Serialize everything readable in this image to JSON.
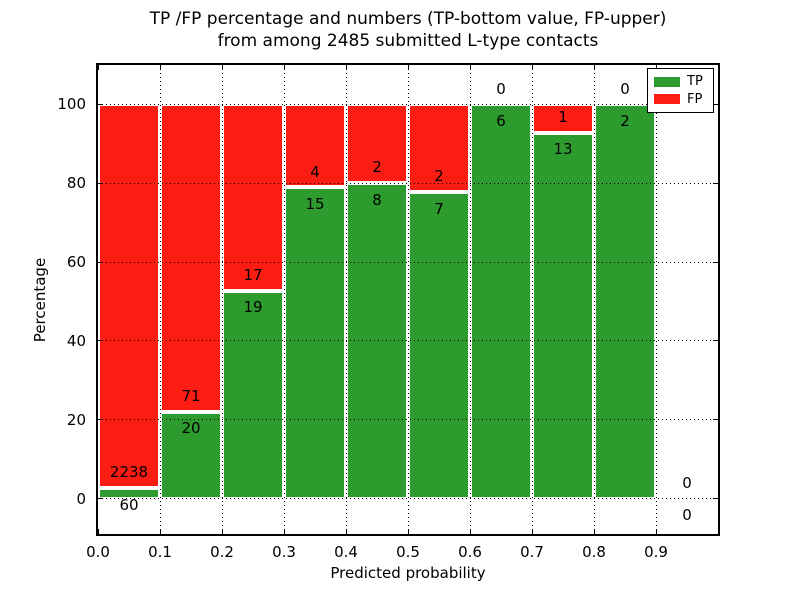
{
  "title_line1": "TP /FP percentage and numbers (TP-bottom value, FP-upper)",
  "title_line2": "from among 2485 submitted L-type contacts",
  "colors": {
    "tp": "#2e9b2e",
    "fp": "#fb1d14",
    "grid": "#000000",
    "frame": "#000000",
    "background": "#ffffff"
  },
  "chart_data": {
    "type": "bar",
    "stacked": true,
    "title": "TP /FP percentage and numbers (TP-bottom value, FP-upper) from among 2485 submitted L-type contacts",
    "xlabel": "Predicted probability",
    "ylabel": "Percentage",
    "total_contacts": 2485,
    "x_ticks": [
      0.0,
      0.1,
      0.2,
      0.3,
      0.4,
      0.5,
      0.6,
      0.7,
      0.8,
      0.9
    ],
    "x_tick_labels": [
      "0.0",
      "0.1",
      "0.2",
      "0.3",
      "0.4",
      "0.5",
      "0.6",
      "0.7",
      "0.8",
      "0.9"
    ],
    "y_ticks": [
      0,
      20,
      40,
      60,
      80,
      100
    ],
    "y_tick_labels": [
      "0",
      "20",
      "40",
      "60",
      "80",
      "100"
    ],
    "xlim": [
      0.0,
      1.0
    ],
    "ylim": [
      -9,
      110
    ],
    "grid": "dotted",
    "legend": {
      "position": "upper right",
      "entries": [
        {
          "label": "TP",
          "series": "tp"
        },
        {
          "label": "FP",
          "series": "fp"
        }
      ]
    },
    "bins": [
      {
        "x0": 0.0,
        "x1": 0.1,
        "tp": 60,
        "fp": 2238,
        "tp_percent": 2.61
      },
      {
        "x0": 0.1,
        "x1": 0.2,
        "tp": 20,
        "fp": 71,
        "tp_percent": 21.98
      },
      {
        "x0": 0.2,
        "x1": 0.3,
        "tp": 19,
        "fp": 17,
        "tp_percent": 52.78
      },
      {
        "x0": 0.3,
        "x1": 0.4,
        "tp": 15,
        "fp": 4,
        "tp_percent": 78.95
      },
      {
        "x0": 0.4,
        "x1": 0.5,
        "tp": 8,
        "fp": 2,
        "tp_percent": 80.0
      },
      {
        "x0": 0.5,
        "x1": 0.6,
        "tp": 7,
        "fp": 2,
        "tp_percent": 77.78
      },
      {
        "x0": 0.6,
        "x1": 0.7,
        "tp": 6,
        "fp": 0,
        "tp_percent": 100.0
      },
      {
        "x0": 0.7,
        "x1": 0.8,
        "tp": 13,
        "fp": 1,
        "tp_percent": 92.86
      },
      {
        "x0": 0.8,
        "x1": 0.9,
        "tp": 2,
        "fp": 0,
        "tp_percent": 100.0
      },
      {
        "x0": 0.9,
        "x1": 1.0,
        "tp": 0,
        "fp": 0,
        "tp_percent": 0.0
      }
    ]
  }
}
